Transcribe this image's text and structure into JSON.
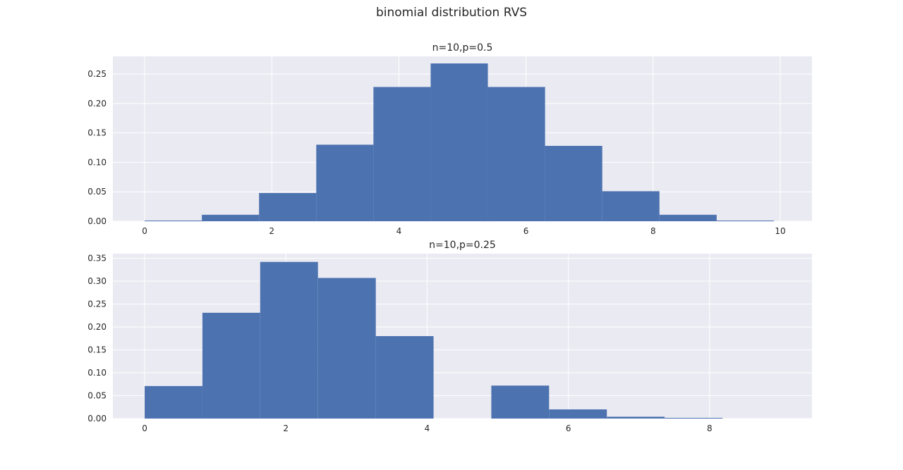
{
  "title": "binomial distribution RVS",
  "colors": {
    "bar": "#4c72b0",
    "plot_bg": "#eaeaf2",
    "grid": "#ffffff",
    "text": "#262626"
  },
  "chart_data": [
    {
      "type": "bar",
      "title": "n=10,p=0.5",
      "xlabel": "",
      "ylabel": "",
      "xlim": [
        -0.5,
        10.5
      ],
      "ylim": [
        0,
        0.28
      ],
      "grid": true,
      "bin_width": 0.9,
      "bin_starts": [
        0,
        0.9,
        1.8,
        2.7,
        3.6,
        4.5,
        5.4,
        6.3,
        7.2,
        8.1,
        9.0
      ],
      "values": [
        0.001,
        0.011,
        0.048,
        0.13,
        0.228,
        0.268,
        0.228,
        0.128,
        0.051,
        0.011,
        0.001
      ],
      "xticks": [
        0,
        2,
        4,
        6,
        8,
        10
      ],
      "xtick_labels": [
        "0",
        "2",
        "4",
        "6",
        "8",
        "10"
      ],
      "yticks": [
        0,
        0.05,
        0.1,
        0.15,
        0.2,
        0.25
      ],
      "ytick_labels": [
        "0.00",
        "0.05",
        "0.10",
        "0.15",
        "0.20",
        "0.25"
      ]
    },
    {
      "type": "bar",
      "title": "n=10,p=0.25",
      "xlabel": "",
      "ylabel": "",
      "xlim": [
        -0.45,
        9.45
      ],
      "ylim": [
        0,
        0.36
      ],
      "grid": true,
      "bin_width": 0.818,
      "bin_starts": [
        0,
        0.818,
        1.636,
        2.455,
        3.273,
        4.091,
        4.909,
        5.727,
        6.545,
        7.364
      ],
      "values": [
        0.071,
        0.231,
        0.342,
        0.307,
        0.18,
        0,
        0.072,
        0.02,
        0.004,
        0.001
      ],
      "xticks": [
        0,
        2,
        4,
        6,
        8
      ],
      "xtick_labels": [
        "0",
        "2",
        "4",
        "6",
        "8"
      ],
      "yticks": [
        0,
        0.05,
        0.1,
        0.15,
        0.2,
        0.25,
        0.3,
        0.35
      ],
      "ytick_labels": [
        "0.00",
        "0.05",
        "0.10",
        "0.15",
        "0.20",
        "0.25",
        "0.30",
        "0.35"
      ]
    }
  ]
}
